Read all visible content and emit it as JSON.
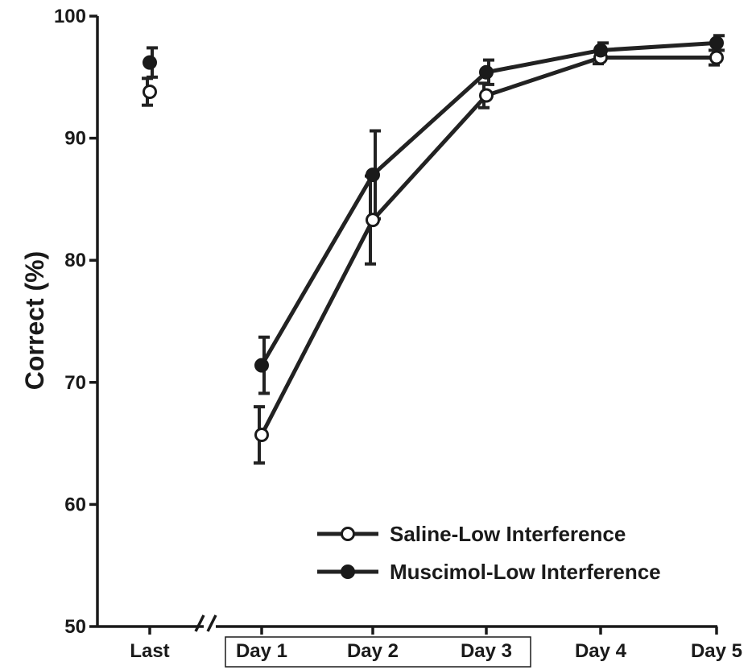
{
  "chart_data": {
    "type": "line",
    "title": "",
    "xlabel": "",
    "ylabel": "Correct (%)",
    "ylim": [
      50,
      100
    ],
    "yticks": [
      50,
      60,
      70,
      80,
      90,
      100
    ],
    "categories": [
      "Last",
      "Day 1",
      "Day 2",
      "Day 3",
      "Day 4",
      "Day 5"
    ],
    "boxed_categories": [
      "Day 1",
      "Day 2",
      "Day 3"
    ],
    "axis_break_after": "Last",
    "connected_from": "Day 1",
    "grid": false,
    "legend_position": "bottom-right",
    "series": [
      {
        "name": "Saline-Low Interference",
        "marker": "open-circle",
        "values": [
          93.8,
          65.7,
          83.3,
          93.5,
          96.6,
          96.6
        ],
        "err_low": [
          92.7,
          63.4,
          79.7,
          92.5,
          96.1,
          96.0
        ],
        "err_high": [
          94.9,
          68.0,
          86.9,
          94.5,
          97.1,
          97.2
        ]
      },
      {
        "name": "Muscimol-Low Interference",
        "marker": "filled-circle",
        "values": [
          96.2,
          71.4,
          87.0,
          95.4,
          97.2,
          97.8
        ],
        "err_low": [
          95.0,
          69.1,
          83.4,
          94.4,
          96.6,
          97.2
        ],
        "err_high": [
          97.4,
          73.7,
          90.6,
          96.4,
          97.8,
          98.4
        ]
      }
    ]
  }
}
